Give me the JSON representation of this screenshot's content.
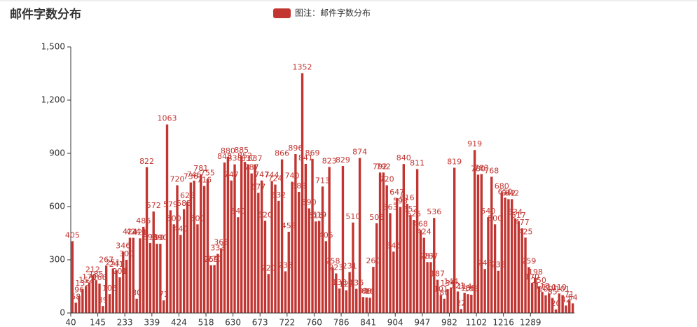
{
  "chart_data": {
    "type": "bar",
    "title": "邮件字数分布",
    "categories": [
      "40",
      null,
      null,
      null,
      null,
      null,
      null,
      null,
      "145",
      null,
      null,
      null,
      null,
      null,
      null,
      null,
      "233",
      null,
      null,
      null,
      null,
      null,
      null,
      null,
      "339",
      null,
      null,
      null,
      null,
      null,
      null,
      null,
      "424",
      null,
      null,
      null,
      null,
      null,
      null,
      null,
      "518",
      null,
      null,
      null,
      null,
      null,
      null,
      null,
      "630",
      null,
      null,
      null,
      null,
      null,
      null,
      null,
      "673",
      null,
      null,
      null,
      null,
      null,
      null,
      null,
      "722",
      null,
      null,
      null,
      null,
      null,
      null,
      null,
      "760",
      null,
      null,
      null,
      null,
      null,
      null,
      null,
      "786",
      null,
      null,
      null,
      null,
      null,
      null,
      null,
      "841",
      null,
      null,
      null,
      null,
      null,
      null,
      null,
      "904",
      null,
      null,
      null,
      null,
      null,
      null,
      null,
      "947",
      null,
      null,
      null,
      null,
      null,
      null,
      null,
      "982",
      null,
      null,
      null,
      null,
      null,
      null,
      null,
      "1102",
      null,
      null,
      null,
      null,
      null,
      null,
      null,
      "1216",
      null,
      null,
      null,
      null,
      null,
      null,
      null,
      "1289",
      null,
      null,
      null,
      null,
      null,
      null,
      null,
      null,
      null,
      null,
      null,
      null
    ],
    "series": [
      {
        "name": "图注：邮件字数分布",
        "color": "#c23531",
        "values": [
          405,
          58,
          96,
          135,
          152,
          170,
          212,
          185,
          166,
          39,
          267,
          106,
          251,
          241,
          201,
          346,
          300,
          424,
          424,
          80,
          421,
          486,
          822,
          395,
          572,
          390,
          390,
          71,
          1063,
          579,
          500,
          720,
          440,
          585,
          628,
          736,
          746,
          500,
          781,
          716,
          755,
          269,
          270,
          333,
          365,
          848,
          880,
          747,
          838,
          540,
          885,
          852,
          837,
          787,
          837,
          677,
          747,
          520,
          220,
          744,
          724,
          632,
          866,
          235,
          458,
          740,
          896,
          683,
          1352,
          841,
          590,
          869,
          516,
          519,
          713,
          405,
          823,
          258,
          223,
          138,
          829,
          128,
          231,
          510,
          136,
          874,
          90,
          88,
          86,
          260,
          506,
          792,
          792,
          720,
          563,
          346,
          647,
          598,
          840,
          616,
          552,
          525,
          811,
          468,
          424,
          287,
          287,
          536,
          187,
          101,
          80,
          134,
          144,
          819,
          121,
          22,
          114,
          106,
          103,
          919,
          780,
          783,
          248,
          540,
          768,
          500,
          238,
          680,
          650,
          642,
          642,
          534,
          517,
          477,
          425,
          259,
          170,
          198,
          150,
          118,
          100,
          110,
          85,
          20,
          110,
          101,
          42,
          71,
          54
        ]
      }
    ],
    "ylim": [
      0,
      1500
    ],
    "yticks": [
      0,
      300,
      600,
      900,
      {
        "value": 1200,
        "label": "1,200"
      },
      {
        "value": 1500,
        "label": "1,500"
      }
    ],
    "grid": false
  }
}
